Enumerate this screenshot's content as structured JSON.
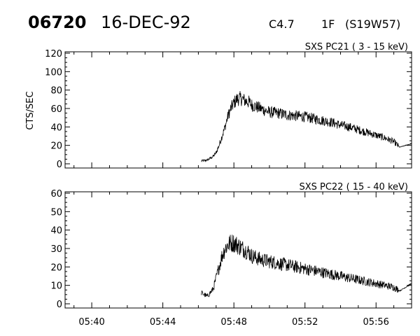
{
  "header": {
    "event_id": "06720",
    "date": "16-DEC-92",
    "flare_class": "C4.7",
    "optical_class": "1F",
    "location": "(S19W57)"
  },
  "chart_data": [
    {
      "type": "line",
      "title": "SXS PC21   (  3 - 15 keV)",
      "ylabel": "CTS/SEC",
      "xlabel": "",
      "ylim": [
        0,
        120
      ],
      "yticks": [
        0,
        20,
        40,
        60,
        80,
        100,
        120
      ],
      "xlim": [
        "05:38:30",
        "05:58:00"
      ],
      "xticks": [
        "05:40",
        "05:44",
        "05:48",
        "05:52",
        "05:56"
      ],
      "show_xtick_labels": false,
      "grid": false,
      "series": [
        {
          "x": [
            "05:46:10",
            "05:46:30",
            "05:46:50",
            "05:47:00",
            "05:47:10",
            "05:47:20",
            "05:47:30",
            "05:47:40",
            "05:47:50",
            "05:48:00",
            "05:48:10",
            "05:48:20",
            "05:48:30",
            "05:48:40",
            "05:48:50",
            "05:49:00",
            "05:49:30",
            "05:50:00",
            "05:50:30",
            "05:51:00",
            "05:51:30",
            "05:52:00",
            "05:52:30",
            "05:53:00",
            "05:53:30",
            "05:54:00",
            "05:54:30",
            "05:55:00",
            "05:55:30",
            "05:56:00",
            "05:56:30",
            "05:57:00",
            "05:57:20",
            "05:57:40",
            "05:58:00"
          ],
          "values": [
            3,
            4,
            8,
            12,
            20,
            30,
            40,
            52,
            60,
            66,
            70,
            71,
            70,
            68,
            67,
            64,
            60,
            56,
            55,
            53,
            52,
            51,
            49,
            47,
            45,
            42,
            40,
            37,
            34,
            31,
            28,
            24,
            18,
            20,
            22
          ],
          "noise": 14
        }
      ]
    },
    {
      "type": "line",
      "title": "SXS PC22   ( 15 - 40 keV)",
      "ylabel": "",
      "xlabel": "",
      "ylim": [
        0,
        60
      ],
      "yticks": [
        0,
        10,
        20,
        30,
        40,
        50,
        60
      ],
      "xlim": [
        "05:38:30",
        "05:58:00"
      ],
      "xticks": [
        "05:40",
        "05:44",
        "05:48",
        "05:52",
        "05:56"
      ],
      "show_xtick_labels": true,
      "grid": false,
      "series": [
        {
          "x": [
            "05:46:10",
            "05:46:30",
            "05:46:50",
            "05:47:00",
            "05:47:10",
            "05:47:20",
            "05:47:30",
            "05:47:40",
            "05:47:50",
            "05:48:00",
            "05:48:10",
            "05:48:20",
            "05:48:30",
            "05:48:40",
            "05:48:50",
            "05:49:00",
            "05:49:30",
            "05:50:00",
            "05:50:30",
            "05:51:00",
            "05:51:30",
            "05:52:00",
            "05:52:30",
            "05:53:00",
            "05:53:30",
            "05:54:00",
            "05:54:30",
            "05:55:00",
            "05:55:30",
            "05:56:00",
            "05:56:30",
            "05:57:00",
            "05:57:20",
            "05:57:40",
            "05:58:00"
          ],
          "values": [
            6,
            4,
            8,
            14,
            20,
            26,
            30,
            32,
            33,
            33,
            32,
            31,
            30,
            29,
            28,
            26,
            24,
            23,
            22,
            21,
            20,
            19,
            18,
            17,
            16,
            15,
            14,
            13,
            12,
            11,
            10,
            9,
            7,
            9,
            11
          ],
          "noise": 10
        }
      ]
    }
  ]
}
